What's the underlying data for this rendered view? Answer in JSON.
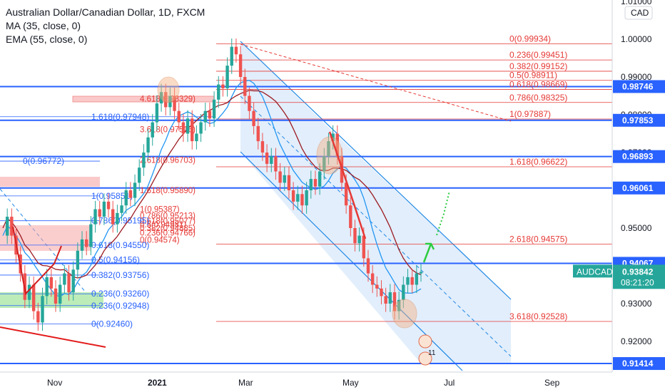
{
  "legend": {
    "title": "Australian Dollar/Canadian Dollar, 1D, FXCM",
    "ma": "MA (35, close, 0)",
    "ema": "EMA (55, close, 0)"
  },
  "colors": {
    "up": "#26a69a",
    "down": "#ef5350",
    "blue": "#2962ff",
    "red": "#e53935",
    "channel": "#1e88e5",
    "channel_fill": "#dbeafb",
    "ma": "#2196f3",
    "ema": "#9c1c22",
    "zone_red": "#f7a6a6",
    "zone_green": "#a5e6a0",
    "marker": "#f4b183"
  },
  "chart_data": {
    "type": "candlestick",
    "symbol": "AUDCAD",
    "currency": "CAD",
    "timeframe": "1D",
    "y_axis_ticks": [
      1.01,
      1.0,
      0.99,
      0.98,
      0.97,
      0.96,
      0.95,
      0.94,
      0.93,
      0.92
    ],
    "y_axis_tick_labels": [
      "1.01000",
      "1.00000",
      "0.99000",
      "0.98000",
      "0.97000",
      "0.96000",
      "0.95000",
      "0.94000",
      "0.93000",
      "0.92000"
    ],
    "x_axis_labels": [
      "Nov",
      "2021",
      "Mar",
      "May",
      "Jul",
      "Sep"
    ],
    "horizontal_levels": [
      "0.98746",
      "0.97853",
      "0.96893",
      "0.96061",
      "0.94067",
      "0.91414"
    ],
    "current_price": {
      "symbol": "AUDCAD",
      "price": "0.93842",
      "countdown": "08:21:20"
    },
    "fib_right": [
      {
        "label": "0(0.99934)",
        "value": 0.99934
      },
      {
        "label": "0.236(0.99451)",
        "value": 0.99451
      },
      {
        "label": "0.382(0.99152)",
        "value": 0.99152
      },
      {
        "label": "0.5(0.98911)",
        "value": 0.98911
      },
      {
        "label": "0.618(0.98669)",
        "value": 0.98669
      },
      {
        "label": "0.786(0.98325)",
        "value": 0.98325
      },
      {
        "label": "1(0.97887)",
        "value": 0.97887
      },
      {
        "label": "1.618(0.96622)",
        "value": 0.96622
      },
      {
        "label": "2.618(0.94575)",
        "value": 0.94575
      },
      {
        "label": "3.618(0.92528)",
        "value": 0.92528
      }
    ],
    "fib_mid": [
      {
        "label": "4.618(0.98329)",
        "value": 0.98329
      },
      {
        "label": "3.618(0.97516)",
        "value": 0.97516
      },
      {
        "label": "2.618(0.96703)",
        "value": 0.96703
      },
      {
        "label": "1.618(0.95890)",
        "value": 0.9589
      },
      {
        "label": "1(0.95387)",
        "value": 0.95387
      },
      {
        "label": "0.786(0.95213)",
        "value": 0.95213
      },
      {
        "label": "0.618(0.95077)",
        "value": 0.95077
      },
      {
        "label": "0.5(0.94981)",
        "value": 0.94981
      },
      {
        "label": "0.382(0.94885)",
        "value": 0.94885
      },
      {
        "label": "0.236(0.94766)",
        "value": 0.94766
      },
      {
        "label": "0(0.94574)",
        "value": 0.94574
      }
    ],
    "fib_left": [
      {
        "label": "1.618(0.97948)",
        "value": 0.97948
      },
      {
        "label": "0(0.96772)",
        "value": 0.96772
      },
      {
        "label": "1(0.95851)",
        "value": 0.95851
      },
      {
        "label": "0.786(0.95195)",
        "value": 0.95195
      },
      {
        "label": "0.618(0.94550)",
        "value": 0.9455
      },
      {
        "label": "0.5(0.94156)",
        "value": 0.94156
      },
      {
        "label": "0.382(0.93756)",
        "value": 0.93756
      },
      {
        "label": "0.236(0.93260)",
        "value": 0.9326
      },
      {
        "label": "0.236(0.92948)",
        "value": 0.92948
      },
      {
        "label": "0(0.92460)",
        "value": 0.9246
      }
    ],
    "marker_labels": [
      "11"
    ],
    "price_path": [
      0.948,
      0.953,
      0.948,
      0.943,
      0.938,
      0.931,
      0.935,
      0.928,
      0.925,
      0.932,
      0.937,
      0.934,
      0.93,
      0.935,
      0.938,
      0.933,
      0.939,
      0.944,
      0.947,
      0.945,
      0.951,
      0.955,
      0.953,
      0.957,
      0.955,
      0.951,
      0.954,
      0.956,
      0.96,
      0.958,
      0.962,
      0.966,
      0.97,
      0.974,
      0.978,
      0.983,
      0.986,
      0.982,
      0.985,
      0.981,
      0.978,
      0.975,
      0.979,
      0.973,
      0.975,
      0.978,
      0.981,
      0.979,
      0.984,
      0.988,
      0.987,
      0.993,
      0.998,
      0.996,
      0.99,
      0.985,
      0.981,
      0.977,
      0.973,
      0.97,
      0.967,
      0.969,
      0.965,
      0.962,
      0.964,
      0.96,
      0.957,
      0.959,
      0.956,
      0.96,
      0.963,
      0.961,
      0.965,
      0.969,
      0.973,
      0.975,
      0.969,
      0.962,
      0.956,
      0.95,
      0.946,
      0.948,
      0.942,
      0.938,
      0.935,
      0.934,
      0.932,
      0.93,
      0.933,
      0.928,
      0.931,
      0.935,
      0.937,
      0.935,
      0.938,
      0.9384
    ]
  }
}
